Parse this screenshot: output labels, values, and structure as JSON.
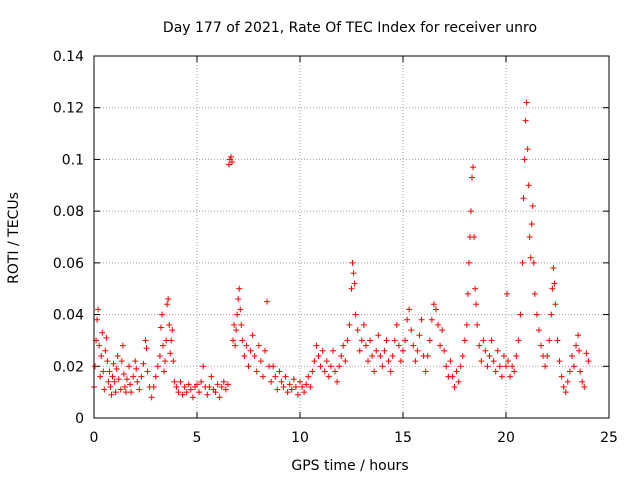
{
  "chart_data": {
    "type": "scatter",
    "title": "Day 177 of 2021, Rate Of TEC Index for receiver unro",
    "xlabel": "GPS time / hours",
    "ylabel": "ROTI / TECUs",
    "xlim": [
      0,
      25
    ],
    "ylim": [
      0,
      0.14
    ],
    "x_ticks": [
      0,
      5,
      10,
      15,
      20,
      25
    ],
    "y_ticks": [
      0,
      0.02,
      0.04,
      0.06,
      0.08,
      0.1,
      0.12,
      0.14
    ],
    "x_tick_labels": [
      "0",
      "5",
      "10",
      "15",
      "20",
      "25"
    ],
    "y_tick_labels": [
      "0",
      "0.02",
      "0.04",
      "0.06",
      "0.08",
      "0.1",
      "0.12",
      "0.14"
    ],
    "grid": true,
    "marker": "+",
    "marker_color": "#ff0000",
    "series": [
      {
        "name": "ROTI",
        "points": [
          [
            0.0,
            0.012
          ],
          [
            0.05,
            0.02
          ],
          [
            0.1,
            0.03
          ],
          [
            0.15,
            0.038
          ],
          [
            0.2,
            0.042
          ],
          [
            0.25,
            0.028
          ],
          [
            0.3,
            0.016
          ],
          [
            0.35,
            0.024
          ],
          [
            0.4,
            0.033
          ],
          [
            0.45,
            0.018
          ],
          [
            0.5,
            0.011
          ],
          [
            0.55,
            0.026
          ],
          [
            0.6,
            0.031
          ],
          [
            0.65,
            0.022
          ],
          [
            0.7,
            0.014
          ],
          [
            0.75,
            0.018
          ],
          [
            0.8,
            0.012
          ],
          [
            0.85,
            0.009
          ],
          [
            0.9,
            0.016
          ],
          [
            0.95,
            0.021
          ],
          [
            1.0,
            0.014
          ],
          [
            1.05,
            0.01
          ],
          [
            1.1,
            0.019
          ],
          [
            1.15,
            0.024
          ],
          [
            1.2,
            0.015
          ],
          [
            1.3,
            0.011
          ],
          [
            1.35,
            0.022
          ],
          [
            1.4,
            0.028
          ],
          [
            1.45,
            0.017
          ],
          [
            1.5,
            0.012
          ],
          [
            1.55,
            0.01
          ],
          [
            1.6,
            0.015
          ],
          [
            1.7,
            0.02
          ],
          [
            1.75,
            0.013
          ],
          [
            1.8,
            0.01
          ],
          [
            1.9,
            0.016
          ],
          [
            2.0,
            0.022
          ],
          [
            2.05,
            0.019
          ],
          [
            2.1,
            0.014
          ],
          [
            2.2,
            0.011
          ],
          [
            2.3,
            0.016
          ],
          [
            2.4,
            0.021
          ],
          [
            2.5,
            0.03
          ],
          [
            2.55,
            0.027
          ],
          [
            2.6,
            0.018
          ],
          [
            2.7,
            0.012
          ],
          [
            2.8,
            0.008
          ],
          [
            2.9,
            0.012
          ],
          [
            3.0,
            0.016
          ],
          [
            3.1,
            0.02
          ],
          [
            3.2,
            0.024
          ],
          [
            3.25,
            0.035
          ],
          [
            3.3,
            0.04
          ],
          [
            3.35,
            0.028
          ],
          [
            3.4,
            0.018
          ],
          [
            3.45,
            0.022
          ],
          [
            3.5,
            0.03
          ],
          [
            3.55,
            0.044
          ],
          [
            3.6,
            0.046
          ],
          [
            3.65,
            0.036
          ],
          [
            3.7,
            0.025
          ],
          [
            3.75,
            0.03
          ],
          [
            3.8,
            0.034
          ],
          [
            3.85,
            0.022
          ],
          [
            3.9,
            0.014
          ],
          [
            4.0,
            0.012
          ],
          [
            4.1,
            0.01
          ],
          [
            4.2,
            0.014
          ],
          [
            4.3,
            0.009
          ],
          [
            4.4,
            0.012
          ],
          [
            4.5,
            0.01
          ],
          [
            4.6,
            0.013
          ],
          [
            4.7,
            0.011
          ],
          [
            4.8,
            0.008
          ],
          [
            4.9,
            0.012
          ],
          [
            5.0,
            0.013
          ],
          [
            5.1,
            0.01
          ],
          [
            5.2,
            0.014
          ],
          [
            5.3,
            0.02
          ],
          [
            5.4,
            0.012
          ],
          [
            5.5,
            0.009
          ],
          [
            5.6,
            0.012
          ],
          [
            5.7,
            0.016
          ],
          [
            5.8,
            0.011
          ],
          [
            5.9,
            0.01
          ],
          [
            6.0,
            0.013
          ],
          [
            6.1,
            0.008
          ],
          [
            6.2,
            0.012
          ],
          [
            6.3,
            0.014
          ],
          [
            6.4,
            0.011
          ],
          [
            6.5,
            0.013
          ],
          [
            6.55,
            0.098
          ],
          [
            6.6,
            0.1
          ],
          [
            6.65,
            0.101
          ],
          [
            6.7,
            0.099
          ],
          [
            6.75,
            0.03
          ],
          [
            6.8,
            0.036
          ],
          [
            6.85,
            0.028
          ],
          [
            6.9,
            0.034
          ],
          [
            6.95,
            0.04
          ],
          [
            7.0,
            0.046
          ],
          [
            7.05,
            0.05
          ],
          [
            7.1,
            0.042
          ],
          [
            7.15,
            0.036
          ],
          [
            7.2,
            0.03
          ],
          [
            7.3,
            0.024
          ],
          [
            7.4,
            0.028
          ],
          [
            7.5,
            0.02
          ],
          [
            7.6,
            0.026
          ],
          [
            7.7,
            0.032
          ],
          [
            7.8,
            0.024
          ],
          [
            7.9,
            0.018
          ],
          [
            8.0,
            0.028
          ],
          [
            8.1,
            0.022
          ],
          [
            8.2,
            0.016
          ],
          [
            8.3,
            0.026
          ],
          [
            8.4,
            0.045
          ],
          [
            8.5,
            0.02
          ],
          [
            8.6,
            0.014
          ],
          [
            8.7,
            0.02
          ],
          [
            8.8,
            0.016
          ],
          [
            8.9,
            0.011
          ],
          [
            9.0,
            0.018
          ],
          [
            9.1,
            0.014
          ],
          [
            9.2,
            0.012
          ],
          [
            9.3,
            0.016
          ],
          [
            9.4,
            0.01
          ],
          [
            9.5,
            0.013
          ],
          [
            9.6,
            0.011
          ],
          [
            9.7,
            0.015
          ],
          [
            9.8,
            0.012
          ],
          [
            9.9,
            0.009
          ],
          [
            10.0,
            0.014
          ],
          [
            10.1,
            0.012
          ],
          [
            10.2,
            0.01
          ],
          [
            10.3,
            0.013
          ],
          [
            10.4,
            0.016
          ],
          [
            10.5,
            0.012
          ],
          [
            10.6,
            0.018
          ],
          [
            10.7,
            0.022
          ],
          [
            10.8,
            0.028
          ],
          [
            10.9,
            0.024
          ],
          [
            11.0,
            0.02
          ],
          [
            11.1,
            0.026
          ],
          [
            11.2,
            0.018
          ],
          [
            11.3,
            0.022
          ],
          [
            11.4,
            0.016
          ],
          [
            11.5,
            0.02
          ],
          [
            11.6,
            0.026
          ],
          [
            11.7,
            0.018
          ],
          [
            11.8,
            0.014
          ],
          [
            11.9,
            0.02
          ],
          [
            12.0,
            0.024
          ],
          [
            12.1,
            0.028
          ],
          [
            12.2,
            0.022
          ],
          [
            12.3,
            0.03
          ],
          [
            12.4,
            0.036
          ],
          [
            12.5,
            0.05
          ],
          [
            12.55,
            0.06
          ],
          [
            12.6,
            0.056
          ],
          [
            12.65,
            0.052
          ],
          [
            12.7,
            0.04
          ],
          [
            12.8,
            0.034
          ],
          [
            12.9,
            0.026
          ],
          [
            13.0,
            0.03
          ],
          [
            13.1,
            0.036
          ],
          [
            13.2,
            0.028
          ],
          [
            13.3,
            0.022
          ],
          [
            13.4,
            0.03
          ],
          [
            13.5,
            0.024
          ],
          [
            13.6,
            0.018
          ],
          [
            13.7,
            0.026
          ],
          [
            13.8,
            0.032
          ],
          [
            13.9,
            0.024
          ],
          [
            14.0,
            0.02
          ],
          [
            14.1,
            0.026
          ],
          [
            14.2,
            0.03
          ],
          [
            14.3,
            0.022
          ],
          [
            14.4,
            0.018
          ],
          [
            14.5,
            0.024
          ],
          [
            14.6,
            0.03
          ],
          [
            14.7,
            0.036
          ],
          [
            14.8,
            0.028
          ],
          [
            14.9,
            0.022
          ],
          [
            15.0,
            0.026
          ],
          [
            15.1,
            0.03
          ],
          [
            15.2,
            0.038
          ],
          [
            15.3,
            0.042
          ],
          [
            15.4,
            0.034
          ],
          [
            15.5,
            0.028
          ],
          [
            15.6,
            0.022
          ],
          [
            15.7,
            0.026
          ],
          [
            15.8,
            0.032
          ],
          [
            15.9,
            0.038
          ],
          [
            16.0,
            0.024
          ],
          [
            16.1,
            0.018
          ],
          [
            16.2,
            0.024
          ],
          [
            16.3,
            0.03
          ],
          [
            16.4,
            0.038
          ],
          [
            16.5,
            0.044
          ],
          [
            16.6,
            0.042
          ],
          [
            16.7,
            0.036
          ],
          [
            16.8,
            0.028
          ],
          [
            16.9,
            0.034
          ],
          [
            17.0,
            0.026
          ],
          [
            17.1,
            0.02
          ],
          [
            17.2,
            0.016
          ],
          [
            17.3,
            0.022
          ],
          [
            17.4,
            0.016
          ],
          [
            17.5,
            0.012
          ],
          [
            17.6,
            0.018
          ],
          [
            17.7,
            0.014
          ],
          [
            17.8,
            0.02
          ],
          [
            17.9,
            0.024
          ],
          [
            18.0,
            0.03
          ],
          [
            18.1,
            0.036
          ],
          [
            18.15,
            0.048
          ],
          [
            18.2,
            0.06
          ],
          [
            18.25,
            0.07
          ],
          [
            18.3,
            0.08
          ],
          [
            18.35,
            0.093
          ],
          [
            18.4,
            0.097
          ],
          [
            18.45,
            0.07
          ],
          [
            18.5,
            0.05
          ],
          [
            18.55,
            0.044
          ],
          [
            18.6,
            0.036
          ],
          [
            18.7,
            0.028
          ],
          [
            18.8,
            0.022
          ],
          [
            18.9,
            0.03
          ],
          [
            19.0,
            0.026
          ],
          [
            19.1,
            0.02
          ],
          [
            19.2,
            0.024
          ],
          [
            19.3,
            0.03
          ],
          [
            19.4,
            0.022
          ],
          [
            19.5,
            0.018
          ],
          [
            19.6,
            0.026
          ],
          [
            19.7,
            0.02
          ],
          [
            19.8,
            0.016
          ],
          [
            19.9,
            0.024
          ],
          [
            20.0,
            0.02
          ],
          [
            20.05,
            0.048
          ],
          [
            20.1,
            0.022
          ],
          [
            20.2,
            0.016
          ],
          [
            20.3,
            0.02
          ],
          [
            20.4,
            0.018
          ],
          [
            20.5,
            0.024
          ],
          [
            20.6,
            0.03
          ],
          [
            20.7,
            0.04
          ],
          [
            20.8,
            0.06
          ],
          [
            20.85,
            0.085
          ],
          [
            20.9,
            0.1
          ],
          [
            20.95,
            0.115
          ],
          [
            21.0,
            0.122
          ],
          [
            21.05,
            0.104
          ],
          [
            21.1,
            0.09
          ],
          [
            21.15,
            0.07
          ],
          [
            21.2,
            0.062
          ],
          [
            21.25,
            0.075
          ],
          [
            21.3,
            0.082
          ],
          [
            21.35,
            0.06
          ],
          [
            21.4,
            0.048
          ],
          [
            21.5,
            0.04
          ],
          [
            21.6,
            0.034
          ],
          [
            21.7,
            0.028
          ],
          [
            21.8,
            0.024
          ],
          [
            21.9,
            0.02
          ],
          [
            22.0,
            0.024
          ],
          [
            22.1,
            0.03
          ],
          [
            22.2,
            0.04
          ],
          [
            22.25,
            0.05
          ],
          [
            22.3,
            0.058
          ],
          [
            22.35,
            0.052
          ],
          [
            22.4,
            0.044
          ],
          [
            22.5,
            0.03
          ],
          [
            22.6,
            0.022
          ],
          [
            22.7,
            0.016
          ],
          [
            22.8,
            0.012
          ],
          [
            22.9,
            0.01
          ],
          [
            23.0,
            0.014
          ],
          [
            23.1,
            0.018
          ],
          [
            23.2,
            0.024
          ],
          [
            23.3,
            0.02
          ],
          [
            23.4,
            0.028
          ],
          [
            23.5,
            0.032
          ],
          [
            23.55,
            0.026
          ],
          [
            23.6,
            0.018
          ],
          [
            23.7,
            0.014
          ],
          [
            23.8,
            0.012
          ],
          [
            23.9,
            0.025
          ],
          [
            24.0,
            0.022
          ]
        ]
      }
    ]
  }
}
